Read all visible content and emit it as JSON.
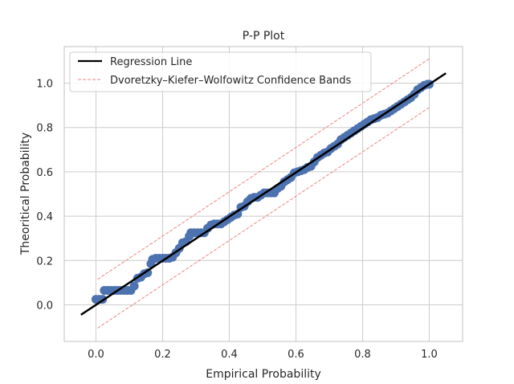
{
  "chart_data": {
    "type": "scatter",
    "title": "P-P Plot",
    "xlabel": "Empirical Probability",
    "ylabel": "Theoritical Probability",
    "xlim": [
      -0.095,
      1.1
    ],
    "ylim": [
      -0.165,
      1.165
    ],
    "xticks": [
      0.0,
      0.2,
      0.4,
      0.6,
      0.8,
      1.0
    ],
    "yticks": [
      0.0,
      0.2,
      0.4,
      0.6,
      0.8,
      1.0
    ],
    "xtick_labels": [
      "0.0",
      "0.2",
      "0.4",
      "0.6",
      "0.8",
      "1.0"
    ],
    "ytick_labels": [
      "0.0",
      "0.2",
      "0.4",
      "0.6",
      "0.8",
      "1.0"
    ],
    "grid": true,
    "legend_position": "top-left",
    "legend": [
      "Regression Line",
      "Dvoretzky–Kiefer–Wolfowitz Confidence Bands"
    ],
    "series": [
      {
        "kind": "scatter",
        "color": "#4c72b0",
        "points": [
          [
            0.0,
            0.025
          ],
          [
            0.01,
            0.025
          ],
          [
            0.02,
            0.025
          ],
          [
            0.025,
            0.065
          ],
          [
            0.035,
            0.065
          ],
          [
            0.045,
            0.065
          ],
          [
            0.055,
            0.065
          ],
          [
            0.065,
            0.065
          ],
          [
            0.075,
            0.065
          ],
          [
            0.085,
            0.065
          ],
          [
            0.095,
            0.065
          ],
          [
            0.105,
            0.065
          ],
          [
            0.115,
            0.085
          ],
          [
            0.125,
            0.12
          ],
          [
            0.135,
            0.125
          ],
          [
            0.145,
            0.14
          ],
          [
            0.155,
            0.145
          ],
          [
            0.165,
            0.185
          ],
          [
            0.17,
            0.205
          ],
          [
            0.18,
            0.21
          ],
          [
            0.19,
            0.21
          ],
          [
            0.2,
            0.21
          ],
          [
            0.21,
            0.21
          ],
          [
            0.22,
            0.21
          ],
          [
            0.23,
            0.215
          ],
          [
            0.24,
            0.235
          ],
          [
            0.25,
            0.255
          ],
          [
            0.26,
            0.28
          ],
          [
            0.27,
            0.285
          ],
          [
            0.28,
            0.31
          ],
          [
            0.285,
            0.325
          ],
          [
            0.295,
            0.325
          ],
          [
            0.305,
            0.325
          ],
          [
            0.315,
            0.325
          ],
          [
            0.325,
            0.325
          ],
          [
            0.335,
            0.345
          ],
          [
            0.345,
            0.36
          ],
          [
            0.355,
            0.365
          ],
          [
            0.365,
            0.365
          ],
          [
            0.375,
            0.365
          ],
          [
            0.385,
            0.375
          ],
          [
            0.395,
            0.385
          ],
          [
            0.405,
            0.395
          ],
          [
            0.415,
            0.405
          ],
          [
            0.425,
            0.41
          ],
          [
            0.435,
            0.44
          ],
          [
            0.445,
            0.445
          ],
          [
            0.455,
            0.465
          ],
          [
            0.465,
            0.48
          ],
          [
            0.475,
            0.485
          ],
          [
            0.485,
            0.485
          ],
          [
            0.495,
            0.495
          ],
          [
            0.505,
            0.505
          ],
          [
            0.515,
            0.505
          ],
          [
            0.525,
            0.505
          ],
          [
            0.535,
            0.505
          ],
          [
            0.545,
            0.525
          ],
          [
            0.555,
            0.535
          ],
          [
            0.565,
            0.555
          ],
          [
            0.575,
            0.565
          ],
          [
            0.585,
            0.575
          ],
          [
            0.595,
            0.595
          ],
          [
            0.605,
            0.6
          ],
          [
            0.615,
            0.605
          ],
          [
            0.625,
            0.61
          ],
          [
            0.635,
            0.62
          ],
          [
            0.645,
            0.625
          ],
          [
            0.655,
            0.645
          ],
          [
            0.665,
            0.665
          ],
          [
            0.675,
            0.675
          ],
          [
            0.685,
            0.685
          ],
          [
            0.695,
            0.69
          ],
          [
            0.705,
            0.705
          ],
          [
            0.715,
            0.715
          ],
          [
            0.725,
            0.725
          ],
          [
            0.735,
            0.745
          ],
          [
            0.745,
            0.755
          ],
          [
            0.755,
            0.765
          ],
          [
            0.765,
            0.775
          ],
          [
            0.775,
            0.785
          ],
          [
            0.785,
            0.795
          ],
          [
            0.795,
            0.805
          ],
          [
            0.805,
            0.815
          ],
          [
            0.815,
            0.825
          ],
          [
            0.825,
            0.835
          ],
          [
            0.835,
            0.84
          ],
          [
            0.845,
            0.845
          ],
          [
            0.855,
            0.855
          ],
          [
            0.865,
            0.86
          ],
          [
            0.875,
            0.865
          ],
          [
            0.885,
            0.875
          ],
          [
            0.895,
            0.885
          ],
          [
            0.905,
            0.895
          ],
          [
            0.915,
            0.905
          ],
          [
            0.925,
            0.915
          ],
          [
            0.935,
            0.925
          ],
          [
            0.945,
            0.935
          ],
          [
            0.955,
            0.95
          ],
          [
            0.965,
            0.97
          ],
          [
            0.975,
            0.98
          ],
          [
            0.985,
            0.99
          ],
          [
            0.995,
            0.995
          ],
          [
            1.0,
            0.995
          ]
        ]
      },
      {
        "kind": "line",
        "name": "Regression Line",
        "color": "#000000",
        "points": [
          [
            -0.045,
            -0.045
          ],
          [
            1.05,
            1.045
          ]
        ]
      },
      {
        "kind": "dashed",
        "name": "Dvoretzky–Kiefer–Wolfowitz Confidence Bands",
        "color": "#f08080",
        "points": [
          [
            0.005,
            0.115
          ],
          [
            1.0,
            1.11
          ]
        ]
      },
      {
        "kind": "dashed",
        "name": "",
        "color": "#f08080",
        "points": [
          [
            0.005,
            -0.105
          ],
          [
            1.0,
            0.89
          ]
        ]
      }
    ]
  }
}
